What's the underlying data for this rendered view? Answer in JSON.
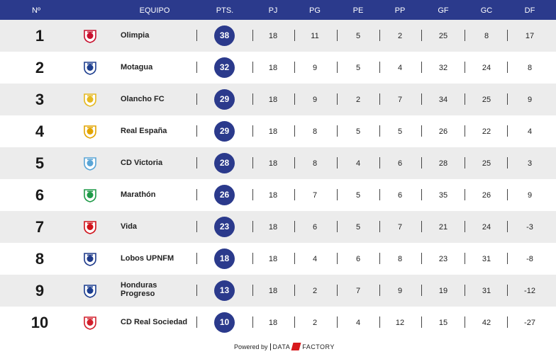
{
  "header": {
    "pos": "Nº",
    "team": "EQUIPO",
    "pts": "PTS.",
    "pj": "PJ",
    "pg": "PG",
    "pe": "PE",
    "pp": "PP",
    "gf": "GF",
    "gc": "GC",
    "df": "DF"
  },
  "rows": [
    {
      "pos": "1",
      "team": "Olimpia",
      "pts": "38",
      "pj": "18",
      "pg": "11",
      "pe": "5",
      "pp": "2",
      "gf": "25",
      "gc": "8",
      "df": "17",
      "crest_icon": "olimpia-crest-icon",
      "crest_color": "#c8102e"
    },
    {
      "pos": "2",
      "team": "Motagua",
      "pts": "32",
      "pj": "18",
      "pg": "9",
      "pe": "5",
      "pp": "4",
      "gf": "32",
      "gc": "24",
      "df": "8",
      "crest_icon": "motagua-crest-icon",
      "crest_color": "#1e3f8f"
    },
    {
      "pos": "3",
      "team": "Olancho FC",
      "pts": "29",
      "pj": "18",
      "pg": "9",
      "pe": "2",
      "pp": "7",
      "gf": "34",
      "gc": "25",
      "df": "9",
      "crest_icon": "olancho-crest-icon",
      "crest_color": "#e5b81f"
    },
    {
      "pos": "4",
      "team": "Real España",
      "pts": "29",
      "pj": "18",
      "pg": "8",
      "pe": "5",
      "pp": "5",
      "gf": "26",
      "gc": "22",
      "df": "4",
      "crest_icon": "real-espana-crest-icon",
      "crest_color": "#e2a400"
    },
    {
      "pos": "5",
      "team": "CD Victoria",
      "pts": "28",
      "pj": "18",
      "pg": "8",
      "pe": "4",
      "pp": "6",
      "gf": "28",
      "gc": "25",
      "df": "3",
      "crest_icon": "victoria-crest-icon",
      "crest_color": "#5aa5d6"
    },
    {
      "pos": "6",
      "team": "Marathón",
      "pts": "26",
      "pj": "18",
      "pg": "7",
      "pe": "5",
      "pp": "6",
      "gf": "35",
      "gc": "26",
      "df": "9",
      "crest_icon": "marathon-crest-icon",
      "crest_color": "#1f9a48"
    },
    {
      "pos": "7",
      "team": "Vida",
      "pts": "23",
      "pj": "18",
      "pg": "6",
      "pe": "5",
      "pp": "7",
      "gf": "21",
      "gc": "24",
      "df": "-3",
      "crest_icon": "vida-crest-icon",
      "crest_color": "#d0121a"
    },
    {
      "pos": "8",
      "team": "Lobos UPNFM",
      "pts": "18",
      "pj": "18",
      "pg": "4",
      "pe": "6",
      "pp": "8",
      "gf": "23",
      "gc": "31",
      "df": "-8",
      "crest_icon": "lobos-crest-icon",
      "crest_color": "#1f3a8a"
    },
    {
      "pos": "9",
      "team": "Honduras Progreso",
      "pts": "13",
      "pj": "18",
      "pg": "2",
      "pe": "7",
      "pp": "9",
      "gf": "19",
      "gc": "31",
      "df": "-12",
      "crest_icon": "honduras-progreso-crest-icon",
      "crest_color": "#1b3d8f"
    },
    {
      "pos": "10",
      "team": "CD Real Sociedad",
      "pts": "10",
      "pj": "18",
      "pg": "2",
      "pe": "4",
      "pp": "12",
      "gf": "15",
      "gc": "42",
      "df": "-27",
      "crest_icon": "real-sociedad-crest-icon",
      "crest_color": "#d21f2b"
    }
  ],
  "footer": {
    "powered_by": "Powered by",
    "brand_left": "DATA",
    "brand_right": "FACTORY"
  },
  "colors": {
    "header_bg": "#2b3a8c",
    "points_badge": "#2b3a8c",
    "row_alt": "#ececec",
    "brand_red": "#d7191c"
  }
}
